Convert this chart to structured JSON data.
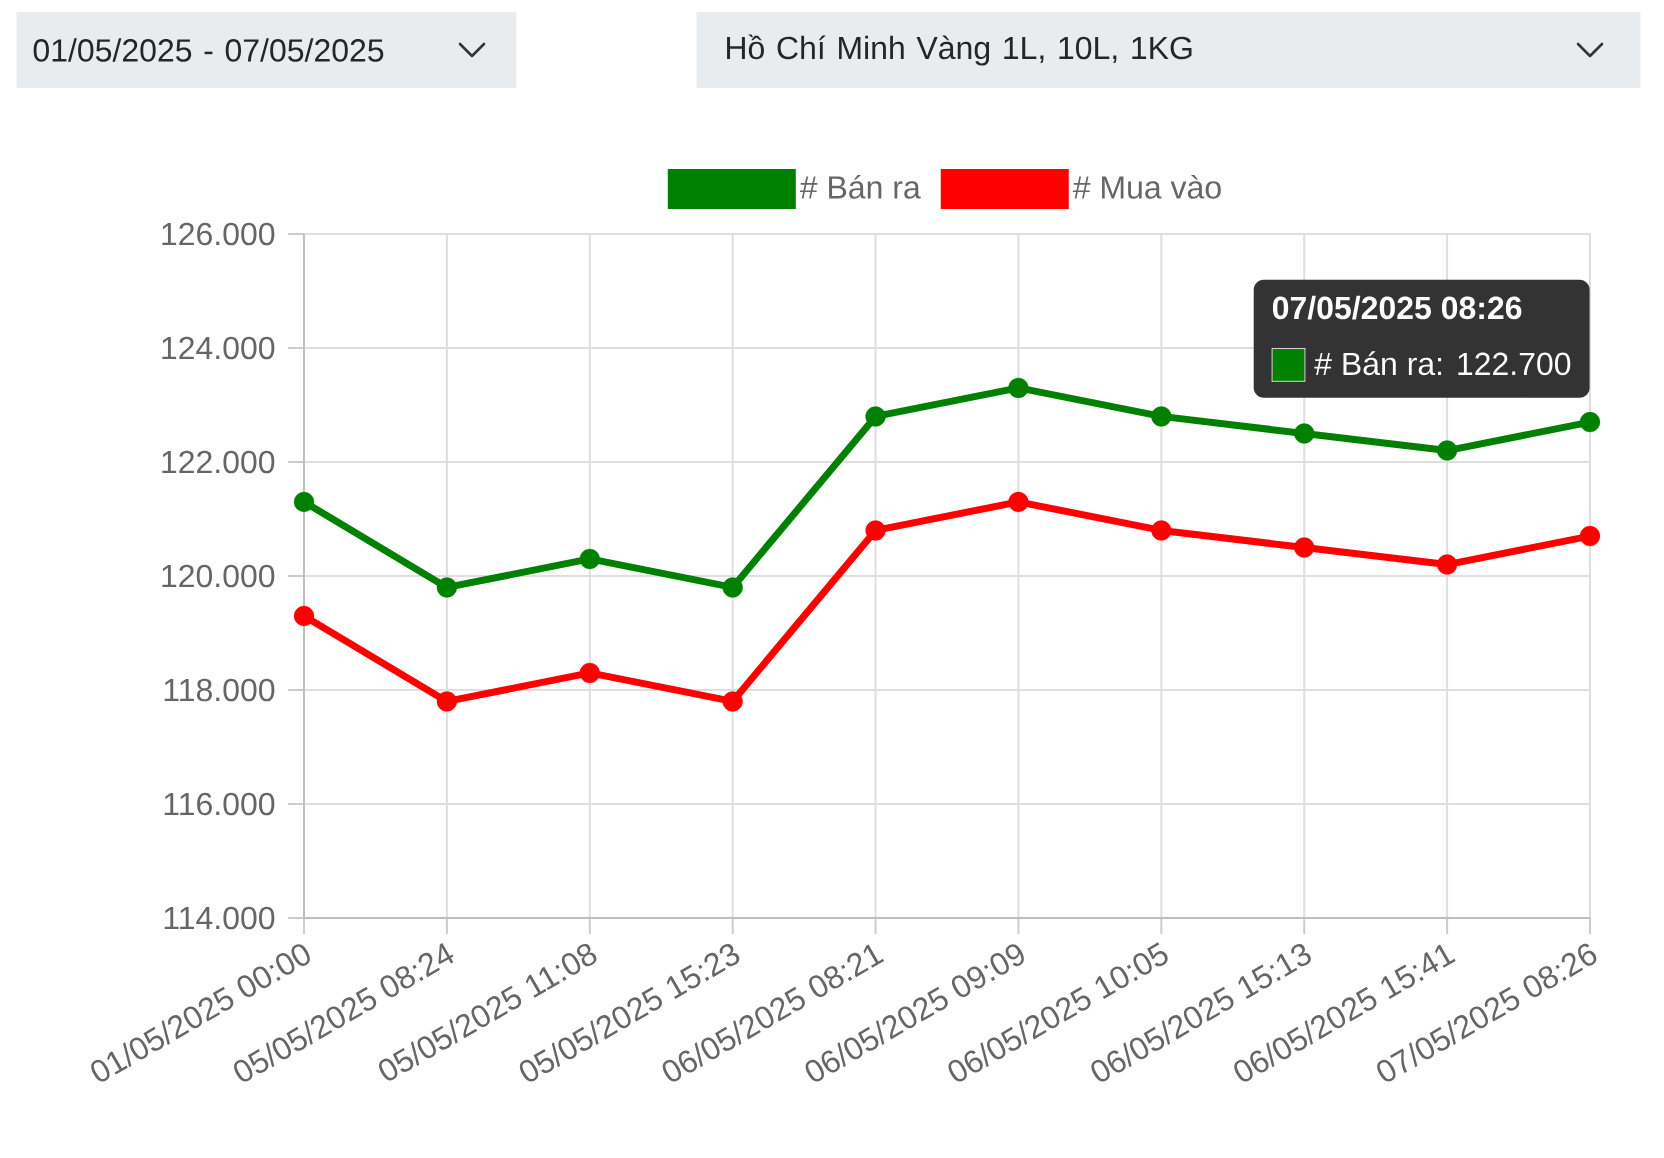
{
  "chart_data": {
    "type": "line",
    "categories": [
      "01/05/2025 00:00",
      "05/05/2025 08:24",
      "05/05/2025 11:08",
      "05/05/2025 15:23",
      "06/05/2025 08:21",
      "06/05/2025 09:09",
      "06/05/2025 10:05",
      "06/05/2025 15:13",
      "06/05/2025 15:41",
      "07/05/2025 08:26"
    ],
    "series": [
      {
        "name": "# Bán ra",
        "color": "#008000",
        "values": [
          121300,
          119800,
          120300,
          119800,
          122800,
          123300,
          122800,
          122500,
          122200,
          122700
        ]
      },
      {
        "name": "# Mua vào",
        "color": "#ff0000",
        "values": [
          119300,
          117800,
          118300,
          117800,
          120800,
          121300,
          120800,
          120500,
          120200,
          120700
        ]
      }
    ],
    "ylim": [
      114000,
      126000
    ],
    "yticks": [
      {
        "value": 114000,
        "label": "114.000"
      },
      {
        "value": 116000,
        "label": "116.000"
      },
      {
        "value": 118000,
        "label": "118.000"
      },
      {
        "value": 120000,
        "label": "120.000"
      },
      {
        "value": 122000,
        "label": "122.000"
      },
      {
        "value": 124000,
        "label": "124.000"
      },
      {
        "value": 126000,
        "label": "126.000"
      }
    ],
    "grid": true,
    "legend": "top",
    "marker": "circle",
    "line_style": "solid",
    "annotations": [
      "01/05/2025 - 07/05/2025",
      "Hồ Chí Minh Vàng 1L, 10L, 1KG",
      "07/05/2025 08:26",
      "# Bán ra: 122.700"
    ]
  }
}
